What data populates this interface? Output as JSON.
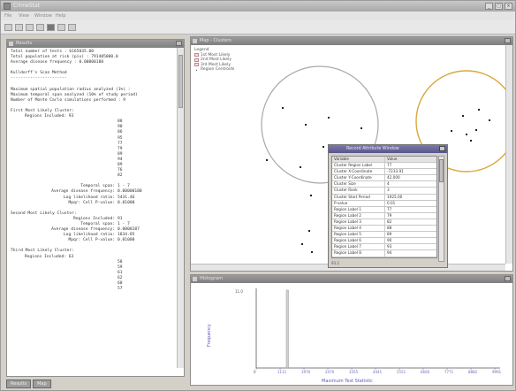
{
  "window": {
    "title": "CrimeStat"
  },
  "menu": [
    "File",
    "View",
    "Window",
    "Help"
  ],
  "text_pane": {
    "title": "Results",
    "lines": [
      {
        "t": "kv0",
        "text": "Total number of tests : 6165035.00"
      },
      {
        "t": "kv0",
        "text": "Total population at risk (pix) : 791405000.0"
      },
      {
        "t": "kv0",
        "text": "Average disease frequency : 0.00000180"
      },
      {
        "t": "blank"
      },
      {
        "t": "kv0",
        "text": "Kulldorff's Scan Method"
      },
      {
        "t": "kv0",
        "text": "-----------------------"
      },
      {
        "t": "blank"
      },
      {
        "t": "kv0",
        "text": "Maximum spatial population radius analyzed (1%) :"
      },
      {
        "t": "kv0",
        "text": "Maximum temporal span analyzed (10% of study period)"
      },
      {
        "t": "kv0",
        "text": "Number of Monte Carlo simulations performed : 9"
      },
      {
        "t": "blank"
      },
      {
        "t": "kv0",
        "text": "First Most Likely Cluster:"
      },
      {
        "t": "ind",
        "text": "Regions Included: 93"
      },
      {
        "t": "num",
        "text": "88"
      },
      {
        "t": "num",
        "text": "90"
      },
      {
        "t": "num",
        "text": "86"
      },
      {
        "t": "num",
        "text": "95"
      },
      {
        "t": "num",
        "text": "77"
      },
      {
        "t": "num",
        "text": "79"
      },
      {
        "t": "num",
        "text": "89"
      },
      {
        "t": "num",
        "text": "94"
      },
      {
        "t": "num",
        "text": "89"
      },
      {
        "t": "num",
        "text": "76"
      },
      {
        "t": "num",
        "text": "82"
      },
      {
        "t": "blank"
      },
      {
        "t": "kv",
        "k": "Temporal span:",
        "v": "1 - 7"
      },
      {
        "t": "kv",
        "k": "Average disease frequency:",
        "v": "0.00000180"
      },
      {
        "t": "kv",
        "k": "Log likelihood ratio:",
        "v": "5431.46"
      },
      {
        "t": "kv",
        "k": "Mpqr: Cell P-value:",
        "v": "0.01000"
      },
      {
        "t": "blank"
      },
      {
        "t": "kv0",
        "text": "Second Most Likely Cluster:"
      },
      {
        "t": "kv",
        "k": "Regions Included:",
        "v": "91"
      },
      {
        "t": "kv",
        "k": "Temporal span:",
        "v": "1 - 7"
      },
      {
        "t": "kv",
        "k": "Average disease frequency:",
        "v": "0.0000187"
      },
      {
        "t": "kv",
        "k": "Log likelihood ratio:",
        "v": "1834.85"
      },
      {
        "t": "kv",
        "k": "Mpqr: Cell P-value:",
        "v": "0.01000"
      },
      {
        "t": "blank"
      },
      {
        "t": "kv0",
        "text": "Third Most Likely Cluster:"
      },
      {
        "t": "ind",
        "text": "Regions Included: 63"
      },
      {
        "t": "num",
        "text": "58"
      },
      {
        "t": "num",
        "text": "59"
      },
      {
        "t": "num",
        "text": "61"
      },
      {
        "t": "num",
        "text": "62"
      },
      {
        "t": "num",
        "text": "60"
      },
      {
        "t": "num",
        "text": "57"
      }
    ]
  },
  "taskbar": [
    "Results",
    "Map"
  ],
  "map_pane": {
    "title": "Map - Clusters",
    "legend": [
      {
        "label": "Legend",
        "kind": "none"
      },
      {
        "label": "1st Most Likely",
        "kind": "box"
      },
      {
        "label": "2nd Most Likely",
        "kind": "box"
      },
      {
        "label": "3rd Most Likely",
        "kind": "box"
      },
      {
        "label": "Region Centroids",
        "kind": "dot"
      }
    ],
    "colors": {
      "circle1": "#a8a8a8",
      "circle2": "#d8a83a",
      "points": "#222222"
    }
  },
  "dialog": {
    "title": "Record Attribute Window",
    "headers": [
      "Variable",
      "Value"
    ],
    "rows": [
      [
        "Cluster Region Label",
        "77"
      ],
      [
        "Cluster X-Coordinate",
        "-7233.91"
      ],
      [
        "Cluster Y-Coordinate",
        "42.000"
      ],
      [
        "Cluster Size",
        "4"
      ],
      [
        "Cluster Rank",
        "3"
      ],
      [
        "Cluster Start Period",
        "1925.00"
      ],
      [
        "P-value",
        "0.01"
      ],
      [
        "Region Label 1",
        "77"
      ],
      [
        "Region Label 2",
        "79"
      ],
      [
        "Region Label 3",
        "82"
      ],
      [
        "Region Label 4",
        "88"
      ],
      [
        "Region Label 5",
        "89"
      ],
      [
        "Region Label 6",
        "90"
      ],
      [
        "Region Label 7",
        "93"
      ],
      [
        "Region Label 8",
        "94"
      ]
    ],
    "footer": "93.2"
  },
  "hist_pane": {
    "title": "Histogram",
    "ylabel": "Frequency",
    "ytick": "11.0",
    "xlabel": "Maximum Test Statistic",
    "xticks": [
      "0",
      "1111",
      "1970",
      "2470",
      "3355",
      "4441",
      "5551",
      "6660",
      "7771",
      "8882",
      "9991"
    ],
    "accent": "#5a5ab8"
  }
}
